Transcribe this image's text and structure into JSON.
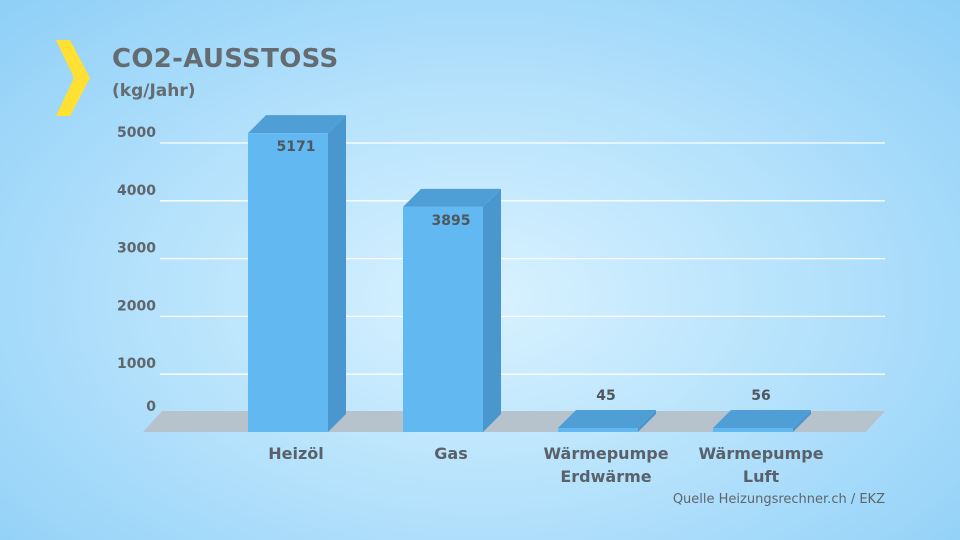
{
  "header": {
    "title": "CO2-AUSSTOSS",
    "subtitle": "(kg/Jahr)"
  },
  "source": "Quelle Heizungsrechner.ch / EKZ",
  "colors": {
    "bar_front": "#62b9f2",
    "bar_side": "#4a97cf",
    "bar_top": "#4f9fd6",
    "floor": "#b7c3cc",
    "gridline": "#ffffff",
    "chevron": "#ffe033",
    "text": "#646c72"
  },
  "chart_data": {
    "type": "bar",
    "categories": [
      [
        "Heizöl"
      ],
      [
        "Gas"
      ],
      [
        "Wärmepumpe",
        "Erdwärme"
      ],
      [
        "Wärmepumpe",
        "Luft"
      ]
    ],
    "values": [
      5171,
      3895,
      45,
      56
    ],
    "data_labels": [
      "5171",
      "3895",
      "45",
      "56"
    ],
    "yticks": [
      0,
      1000,
      2000,
      3000,
      4000,
      5000
    ],
    "ylim": [
      0,
      5000
    ],
    "grid": true
  }
}
